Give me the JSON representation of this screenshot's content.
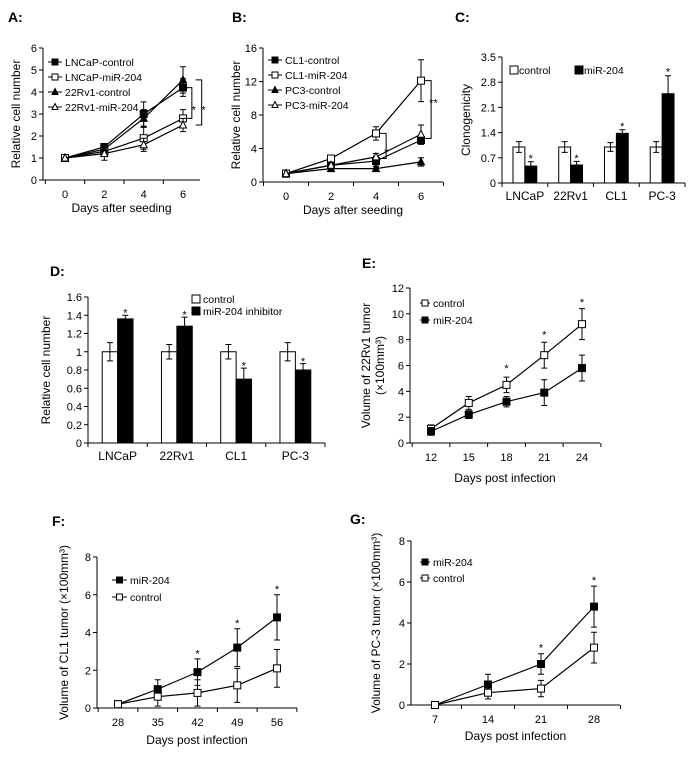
{
  "chart_data": [
    {
      "id": "A",
      "panel_label": "A:",
      "type": "line",
      "xlabel": "Days after seeding",
      "ylabel": [
        "Relative cell number"
      ],
      "x": [
        0,
        2,
        4,
        6
      ],
      "xticks": [
        "0",
        "2",
        "4",
        "6"
      ],
      "ylim": [
        0,
        6
      ],
      "yticks": [
        "0",
        "1",
        "2",
        "3",
        "4",
        "5",
        "6"
      ],
      "ytick_values": [
        0,
        1,
        2,
        3,
        4,
        5,
        6
      ],
      "legend": "top-left",
      "series": [
        {
          "name": "LNCaP-control",
          "marker": "filled-square",
          "values": [
            1,
            1.5,
            3.0,
            4.2
          ],
          "error": [
            0,
            0.1,
            0.55,
            0.4
          ]
        },
        {
          "name": "LNCaP-miR-204",
          "marker": "open-square",
          "values": [
            1,
            1.3,
            1.9,
            2.8
          ],
          "error": [
            0,
            0.15,
            0.5,
            0.4
          ]
        },
        {
          "name": "22Rv1-control",
          "marker": "filled-triangle",
          "values": [
            1,
            1.4,
            2.8,
            4.55
          ],
          "error": [
            0,
            0.1,
            0.4,
            0.6
          ]
        },
        {
          "name": "22Rv1-miR-204",
          "marker": "open-triangle",
          "values": [
            1,
            1.2,
            1.6,
            2.5
          ],
          "error": [
            0,
            0.3,
            0.3,
            0.3
          ]
        }
      ],
      "annotations": [
        {
          "text": "*",
          "x": 6.55,
          "y": 3.2,
          "bracket_x": 6.45,
          "bracket": [
            4.2,
            2.8
          ]
        },
        {
          "text": "*",
          "x": 7.05,
          "y": 3.2,
          "bracket_x": 6.95,
          "bracket": [
            4.55,
            2.5
          ]
        }
      ]
    },
    {
      "id": "B",
      "panel_label": "B:",
      "type": "line",
      "xlabel": "Days after seeding",
      "ylabel": [
        "Relative cell number"
      ],
      "x": [
        0,
        2,
        4,
        6
      ],
      "xticks": [
        "0",
        "2",
        "4",
        "6"
      ],
      "ylim": [
        0,
        16
      ],
      "yticks": [
        "0",
        "4",
        "8",
        "12",
        "16"
      ],
      "ytick_values": [
        0,
        4,
        8,
        12,
        16
      ],
      "legend": "top-left",
      "series": [
        {
          "name": "CL1-control",
          "marker": "filled-square",
          "values": [
            1,
            2.0,
            2.5,
            5.0
          ],
          "error": [
            0,
            0.3,
            0.6,
            0.5
          ]
        },
        {
          "name": "CL1-miR-204",
          "marker": "open-square",
          "values": [
            1,
            2.8,
            5.8,
            12.1
          ],
          "error": [
            0,
            0.3,
            0.8,
            2.5
          ]
        },
        {
          "name": "PC3-control",
          "marker": "filled-triangle",
          "values": [
            1,
            1.6,
            1.6,
            2.4
          ],
          "error": [
            0,
            0.2,
            0.2,
            0.5
          ]
        },
        {
          "name": "PC3-miR-204",
          "marker": "open-triangle",
          "values": [
            1,
            2.0,
            3.0,
            5.7
          ],
          "error": [
            0,
            0.3,
            0.4,
            1.1
          ]
        }
      ],
      "annotations": [
        {
          "text": "*",
          "x": 4.45,
          "y": 3.6,
          "bracket_x": 4.45,
          "bracket": [
            5.8,
            2.8
          ]
        },
        {
          "text": "**",
          "x": 6.55,
          "y": 9.5,
          "bracket_x": 6.45,
          "bracket": [
            12.1,
            5.2
          ]
        }
      ]
    },
    {
      "id": "C",
      "panel_label": "C:",
      "type": "bar",
      "xlabel": "",
      "ylabel": [
        "Clonogenicity"
      ],
      "categories": [
        "LNCaP",
        "22Rv1",
        "CL1",
        "PC-3"
      ],
      "ylim": [
        0,
        3.5
      ],
      "yticks": [
        "0",
        "0.7",
        "1.4",
        "2.1",
        "2.8",
        "3.5"
      ],
      "ytick_values": [
        0,
        0.7,
        1.4,
        2.1,
        2.8,
        3.5
      ],
      "legend": "top",
      "series": [
        {
          "name": "control",
          "fill": "#ffffff",
          "values": [
            1.0,
            1.0,
            1.0,
            1.0
          ],
          "error": [
            0.15,
            0.15,
            0.12,
            0.15
          ]
        },
        {
          "name": "miR-204",
          "fill": "#000000",
          "values": [
            0.47,
            0.5,
            1.38,
            2.48
          ],
          "error": [
            0.12,
            0.1,
            0.1,
            0.5
          ]
        }
      ],
      "annotations": [
        {
          "text": "*",
          "x": 0,
          "y": 0.7
        },
        {
          "text": "*",
          "x": 1,
          "y": 0.7
        },
        {
          "text": "*",
          "x": 2,
          "y": 1.58
        },
        {
          "text": "*",
          "x": 3,
          "y": 3.1
        }
      ]
    },
    {
      "id": "D",
      "panel_label": "D:",
      "type": "bar",
      "xlabel": "",
      "ylabel": [
        "Relative cell number"
      ],
      "categories": [
        "LNCaP",
        "22Rv1",
        "CL1",
        "PC-3"
      ],
      "ylim": [
        0,
        1.6
      ],
      "yticks": [
        "0",
        "0.2",
        "0.4",
        "0.6",
        "0.8",
        "1",
        "1.2",
        "1.4",
        "1.6"
      ],
      "ytick_values": [
        0,
        0.2,
        0.4,
        0.6,
        0.8,
        1,
        1.2,
        1.4,
        1.6
      ],
      "legend": "top-right",
      "series": [
        {
          "name": "control",
          "fill": "#ffffff",
          "values": [
            1.0,
            1.0,
            1.0,
            1.0
          ],
          "error": [
            0.1,
            0.08,
            0.08,
            0.1
          ]
        },
        {
          "name": "miR-204 inhibitor",
          "fill": "#000000",
          "values": [
            1.36,
            1.28,
            0.7,
            0.8
          ],
          "error": [
            0.04,
            0.1,
            0.12,
            0.07
          ]
        }
      ],
      "annotations": [
        {
          "text": "*",
          "x": 0,
          "y": 1.43
        },
        {
          "text": "*",
          "x": 1,
          "y": 1.41
        },
        {
          "text": "*",
          "x": 2,
          "y": 0.85
        },
        {
          "text": "*",
          "x": 3,
          "y": 0.9
        }
      ]
    },
    {
      "id": "E",
      "panel_label": "E:",
      "type": "line",
      "xlabel": "Days post infection",
      "ylabel": [
        "Volume of 22Rv1 tumor",
        "(×100mm³)"
      ],
      "x": [
        12,
        15,
        18,
        21,
        24
      ],
      "xticks": [
        "12",
        "15",
        "18",
        "21",
        "24"
      ],
      "ylim": [
        0,
        12
      ],
      "yticks": [
        "0",
        "2",
        "4",
        "6",
        "8",
        "10",
        "12"
      ],
      "ytick_values": [
        0,
        2,
        4,
        6,
        8,
        10,
        12
      ],
      "legend": "top-left",
      "series": [
        {
          "name": "control",
          "marker": "open-square",
          "values": [
            1.1,
            3.1,
            4.5,
            6.8,
            9.2
          ],
          "error": [
            0.3,
            0.5,
            0.6,
            1.0,
            1.2
          ]
        },
        {
          "name": "miR-204",
          "marker": "filled-square",
          "values": [
            0.9,
            2.2,
            3.2,
            3.9,
            5.8
          ],
          "error": [
            0.3,
            0.3,
            0.4,
            1.0,
            1.0
          ]
        }
      ],
      "annotations": [
        {
          "text": "*",
          "x": 18,
          "y": 5.8
        },
        {
          "text": "*",
          "x": 21,
          "y": 8.4
        },
        {
          "text": "*",
          "x": 24,
          "y": 10.9
        }
      ]
    },
    {
      "id": "F",
      "panel_label": "F:",
      "type": "line",
      "xlabel": "Days post infection",
      "ylabel": [
        "Volume of CL1 tumor (×100mm³)"
      ],
      "x": [
        28,
        35,
        42,
        49,
        56
      ],
      "xticks": [
        "28",
        "35",
        "42",
        "49",
        "56"
      ],
      "ylim": [
        0,
        8
      ],
      "yticks": [
        "0",
        "2",
        "4",
        "6",
        "8"
      ],
      "ytick_values": [
        0,
        2,
        4,
        6,
        8
      ],
      "legend": "top-left",
      "series": [
        {
          "name": "miR-204",
          "marker": "filled-square",
          "values": [
            0.2,
            1.0,
            1.9,
            3.2,
            4.8
          ],
          "error": [
            0.1,
            0.5,
            0.7,
            1.0,
            1.2
          ]
        },
        {
          "name": "control",
          "marker": "open-square",
          "values": [
            0.2,
            0.6,
            0.8,
            1.2,
            2.1
          ],
          "error": [
            0.1,
            0.5,
            0.7,
            0.9,
            1.0
          ]
        }
      ],
      "annotations": [
        {
          "text": "*",
          "x": 42,
          "y": 2.9
        },
        {
          "text": "*",
          "x": 49,
          "y": 4.5
        },
        {
          "text": "*",
          "x": 56,
          "y": 6.3
        }
      ]
    },
    {
      "id": "G",
      "panel_label": "G:",
      "type": "line",
      "xlabel": "Days post infection",
      "ylabel": [
        "Volume of PC-3 tumor (×100mm³)"
      ],
      "x": [
        7,
        14,
        21,
        28
      ],
      "xticks": [
        "7",
        "14",
        "21",
        "28"
      ],
      "ylim": [
        0,
        8
      ],
      "yticks": [
        "0",
        "2",
        "4",
        "6",
        "8"
      ],
      "ytick_values": [
        0,
        2,
        4,
        6,
        8
      ],
      "legend": "top-left",
      "series": [
        {
          "name": "miR-204",
          "marker": "filled-square",
          "values": [
            0,
            1.0,
            2.0,
            4.8
          ],
          "error": [
            0,
            0.5,
            0.5,
            1.0
          ]
        },
        {
          "name": "control",
          "marker": "open-square",
          "values": [
            0,
            0.6,
            0.8,
            2.8
          ],
          "error": [
            0,
            0.3,
            0.4,
            0.75
          ]
        }
      ],
      "annotations": [
        {
          "text": "*",
          "x": 21,
          "y": 2.8
        },
        {
          "text": "*",
          "x": 28,
          "y": 6.1
        }
      ]
    }
  ]
}
